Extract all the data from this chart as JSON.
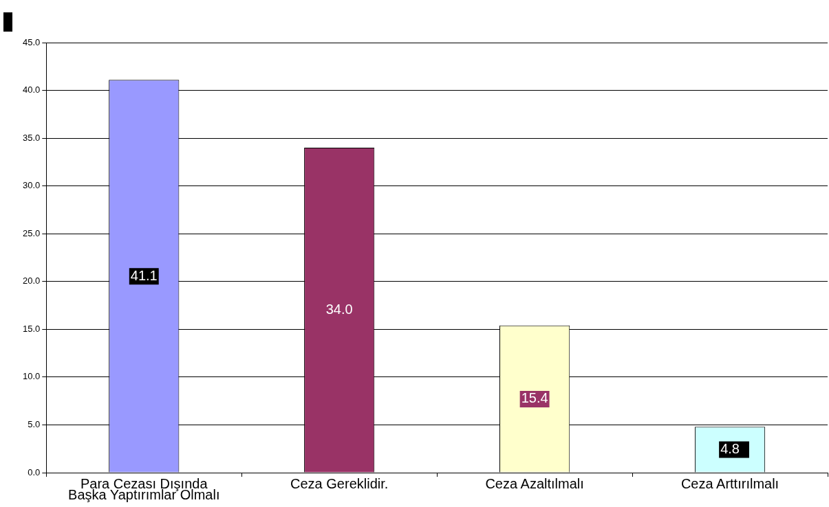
{
  "chart_data": {
    "type": "bar",
    "categories": [
      "Para Cezası Dışında Başka Yaptırımlar Olmalı",
      "Ceza Gereklidir.",
      "Ceza Azaltılmalı",
      "Ceza Arttırılmalı"
    ],
    "values": [
      41.1,
      34.0,
      15.4,
      4.8
    ],
    "colors": [
      "#9999ff",
      "#993366",
      "#ffffcc",
      "#ccffff"
    ],
    "value_labels": [
      "41.1",
      "34.0",
      "15.4",
      "4.8"
    ],
    "ylim": [
      0,
      45
    ],
    "yticks": [
      {
        "value": 0,
        "label": "0.0"
      },
      {
        "value": 5,
        "label": "5.0"
      },
      {
        "value": 10,
        "label": "10.0"
      },
      {
        "value": 15,
        "label": "15.0"
      },
      {
        "value": 20,
        "label": "20.0"
      },
      {
        "value": 25,
        "label": "25.0"
      },
      {
        "value": 30,
        "label": "30.0"
      },
      {
        "value": 35,
        "label": "35.0"
      },
      {
        "value": 40,
        "label": "40.0"
      },
      {
        "value": 45,
        "label": "45.0"
      }
    ],
    "grid": "y",
    "legend": false
  }
}
